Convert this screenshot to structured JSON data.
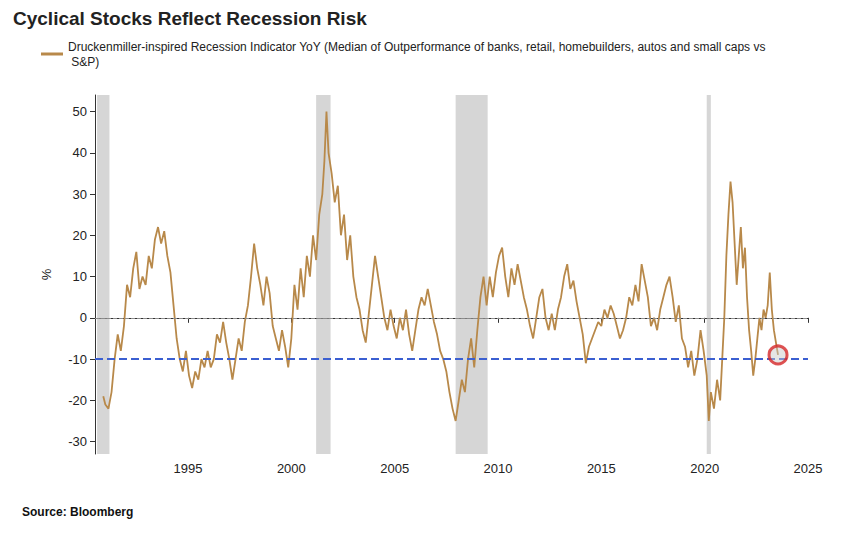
{
  "chart_data": {
    "type": "line",
    "title": "Cyclical Stocks Reflect Recession Risk",
    "source": "Source: Bloomberg",
    "ylabel": "%",
    "x": [
      1990.9,
      1991.0,
      1991.15,
      1991.3,
      1991.45,
      1991.6,
      1991.75,
      1991.9,
      1992.05,
      1992.2,
      1992.35,
      1992.5,
      1992.65,
      1992.8,
      1992.95,
      1993.1,
      1993.25,
      1993.4,
      1993.55,
      1993.7,
      1993.85,
      1994.0,
      1994.15,
      1994.3,
      1994.45,
      1994.6,
      1994.75,
      1994.9,
      1995.05,
      1995.2,
      1995.35,
      1995.5,
      1995.65,
      1995.8,
      1995.95,
      1996.1,
      1996.25,
      1996.4,
      1996.55,
      1996.7,
      1996.85,
      1997.0,
      1997.15,
      1997.3,
      1997.45,
      1997.6,
      1997.75,
      1997.9,
      1998.05,
      1998.2,
      1998.35,
      1998.5,
      1998.65,
      1998.8,
      1998.95,
      1999.1,
      1999.25,
      1999.4,
      1999.55,
      1999.7,
      1999.85,
      2000.0,
      2000.15,
      2000.3,
      2000.45,
      2000.6,
      2000.75,
      2000.9,
      2001.05,
      2001.2,
      2001.35,
      2001.5,
      2001.6,
      2001.7,
      2001.8,
      2001.95,
      2002.1,
      2002.25,
      2002.4,
      2002.55,
      2002.7,
      2002.85,
      2003.0,
      2003.15,
      2003.3,
      2003.45,
      2003.6,
      2003.75,
      2003.9,
      2004.05,
      2004.2,
      2004.35,
      2004.5,
      2004.65,
      2004.8,
      2004.95,
      2005.1,
      2005.25,
      2005.4,
      2005.55,
      2005.7,
      2005.85,
      2006.0,
      2006.15,
      2006.3,
      2006.45,
      2006.6,
      2006.75,
      2006.9,
      2007.05,
      2007.2,
      2007.35,
      2007.5,
      2007.65,
      2007.8,
      2007.95,
      2008.1,
      2008.25,
      2008.4,
      2008.55,
      2008.7,
      2008.85,
      2009.0,
      2009.15,
      2009.3,
      2009.45,
      2009.6,
      2009.75,
      2009.9,
      2010.05,
      2010.2,
      2010.35,
      2010.5,
      2010.65,
      2010.8,
      2010.95,
      2011.1,
      2011.25,
      2011.4,
      2011.55,
      2011.7,
      2011.85,
      2012.0,
      2012.15,
      2012.3,
      2012.45,
      2012.6,
      2012.75,
      2012.9,
      2013.05,
      2013.2,
      2013.35,
      2013.5,
      2013.65,
      2013.8,
      2013.95,
      2014.1,
      2014.25,
      2014.4,
      2014.55,
      2014.7,
      2014.85,
      2015.0,
      2015.15,
      2015.3,
      2015.45,
      2015.6,
      2015.75,
      2015.9,
      2016.05,
      2016.2,
      2016.35,
      2016.5,
      2016.65,
      2016.8,
      2016.95,
      2017.1,
      2017.25,
      2017.4,
      2017.55,
      2017.7,
      2017.85,
      2018.0,
      2018.15,
      2018.3,
      2018.45,
      2018.6,
      2018.75,
      2018.9,
      2019.05,
      2019.2,
      2019.35,
      2019.5,
      2019.65,
      2019.8,
      2019.95,
      2020.1,
      2020.2,
      2020.3,
      2020.45,
      2020.6,
      2020.75,
      2020.85,
      2020.95,
      2021.05,
      2021.15,
      2021.25,
      2021.35,
      2021.45,
      2021.55,
      2021.65,
      2021.75,
      2021.85,
      2021.95,
      2022.05,
      2022.15,
      2022.25,
      2022.35,
      2022.45,
      2022.55,
      2022.65,
      2022.75,
      2022.85,
      2022.95,
      2023.05,
      2023.15,
      2023.25,
      2023.35,
      2023.45,
      2023.55
    ],
    "series": [
      {
        "name": "Druckenmiller-inspired Recession Indicator YoY (Median of Outperformance of banks, retail, homebuilders, autos and small caps vs S&P)",
        "color": "#b8894a",
        "values": [
          -19,
          -21,
          -22,
          -18,
          -10,
          -4,
          -8,
          -2,
          8,
          5,
          12,
          16,
          7,
          10,
          8,
          15,
          12,
          19,
          22,
          18,
          21,
          15,
          11,
          3,
          -5,
          -10,
          -13,
          -8,
          -14,
          -17,
          -13,
          -15,
          -10,
          -12,
          -8,
          -12,
          -10,
          -4,
          -6,
          -1,
          -6,
          -10,
          -15,
          -10,
          -5,
          -8,
          -1,
          3,
          10,
          18,
          12,
          8,
          3,
          10,
          6,
          -2,
          -5,
          -8,
          -3,
          -7,
          -12,
          -5,
          8,
          2,
          12,
          5,
          15,
          10,
          20,
          14,
          25,
          30,
          38,
          50,
          40,
          35,
          28,
          32,
          20,
          25,
          14,
          20,
          10,
          5,
          2,
          -3,
          -6,
          1,
          8,
          15,
          10,
          5,
          0,
          -3,
          2,
          -2,
          -5,
          0,
          -3,
          2,
          -4,
          -8,
          -3,
          2,
          5,
          3,
          7,
          3,
          -1,
          -4,
          -8,
          -10,
          -13,
          -18,
          -22,
          -25,
          -20,
          -15,
          -18,
          -10,
          -5,
          -12,
          -3,
          5,
          10,
          3,
          10,
          5,
          11,
          15,
          17,
          10,
          5,
          12,
          8,
          13,
          9,
          5,
          2,
          -2,
          -5,
          0,
          5,
          7,
          0,
          -3,
          1,
          -3,
          2,
          5,
          10,
          13,
          7,
          9,
          4,
          0,
          -4,
          -11,
          -7,
          -5,
          -3,
          -1,
          -2,
          2,
          0,
          3,
          1,
          -2,
          -5,
          -3,
          0,
          5,
          3,
          8,
          4,
          13,
          9,
          5,
          -2,
          0,
          -3,
          2,
          5,
          8,
          10,
          5,
          -1,
          3,
          -5,
          -7,
          -12,
          -8,
          -14,
          -10,
          -3,
          -8,
          -14,
          -25,
          -18,
          -22,
          -15,
          -20,
          -10,
          0,
          15,
          25,
          33,
          28,
          18,
          8,
          15,
          22,
          12,
          17,
          5,
          -3,
          -8,
          -14,
          -10,
          -5,
          0,
          -3,
          2,
          0,
          3,
          11,
          2,
          -3,
          -6,
          -9
        ]
      }
    ],
    "xlim": [
      1990.5,
      2025
    ],
    "xticks": [
      1995,
      2000,
      2005,
      2010,
      2015,
      2020,
      2025
    ],
    "ylim": [
      -33,
      54
    ],
    "yticks": [
      -30,
      -20,
      -10,
      0,
      10,
      20,
      30,
      40,
      50
    ],
    "grid": false,
    "recessions": [
      [
        1990.6,
        1991.2
      ],
      [
        2001.2,
        2001.9
      ],
      [
        2007.95,
        2009.5
      ],
      [
        2020.1,
        2020.3
      ]
    ],
    "reference_lines": [
      {
        "value": 0,
        "color": "#8c8c8c",
        "line_style": "dashed"
      },
      {
        "value": -10,
        "color": "#3b5fd1",
        "line_style": "dashed"
      }
    ],
    "highlight": {
      "x": 2023.55,
      "y": -9,
      "color": "#d62728",
      "marker": "circle"
    }
  }
}
